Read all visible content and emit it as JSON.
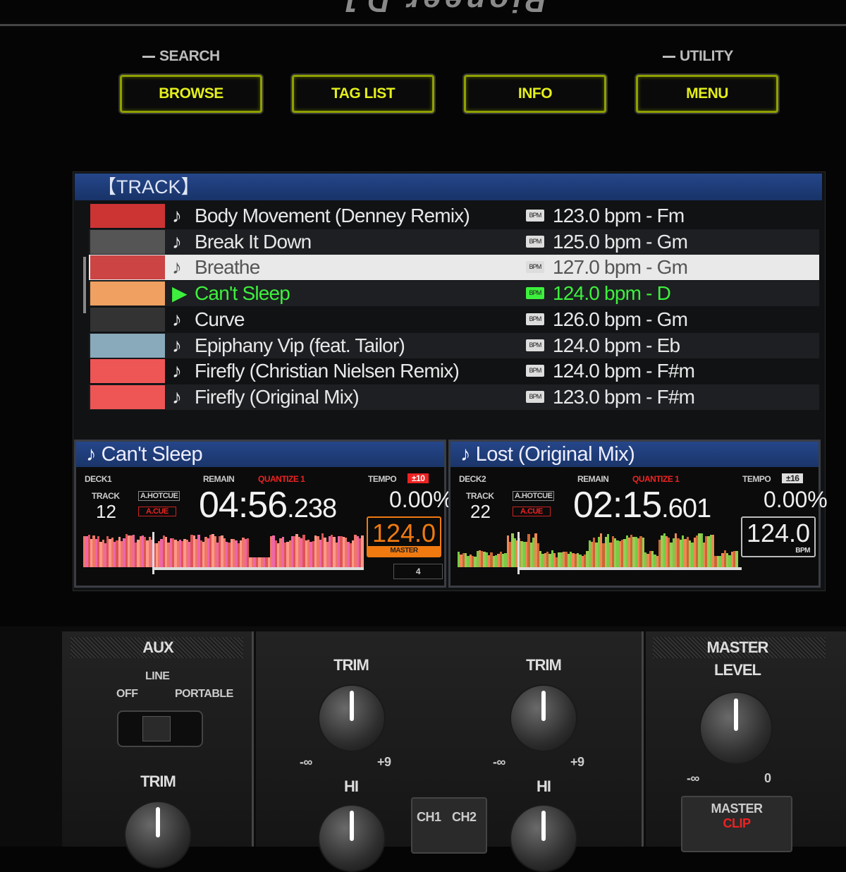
{
  "brand": "Pioneer DJ",
  "header": {
    "search_label": "SEARCH",
    "utility_label": "UTILITY",
    "buttons": [
      "BROWSE",
      "TAG LIST",
      "INFO",
      "MENU"
    ],
    "button_text_color": "#e4ef1a"
  },
  "browser": {
    "title": "【TRACK】",
    "tracks": [
      {
        "title": "Body Movement (Denney Remix)",
        "bpm": "123.0 bpm - Fm",
        "state": ""
      },
      {
        "title": "Break It Down",
        "bpm": "125.0 bpm - Gm",
        "state": ""
      },
      {
        "title": "Breathe",
        "bpm": "127.0 bpm - Gm",
        "state": "selected"
      },
      {
        "title": "Can't Sleep",
        "bpm": "124.0 bpm - D",
        "state": "playing"
      },
      {
        "title": "Curve",
        "bpm": "126.0 bpm - Gm",
        "state": ""
      },
      {
        "title": "Epiphany Vip (feat. Tailor)",
        "bpm": "124.0 bpm - Eb",
        "state": ""
      },
      {
        "title": "Firefly (Christian Nielsen Remix)",
        "bpm": "124.0 bpm - F#m",
        "state": ""
      },
      {
        "title": "Firefly (Original Mix)",
        "bpm": "123.0 bpm - F#m",
        "state": ""
      }
    ],
    "note_icon": "♪",
    "bpm_icon": "BPM",
    "playing_color": "#3df03d"
  },
  "decks": [
    {
      "title": "Can't Sleep",
      "deck": "DECK1",
      "track_label": "TRACK",
      "track": "12",
      "hotcue": "A.HOTCUE",
      "cue": "A.CUE",
      "remain": "REMAIN",
      "quantize": "QUANTIZE 1",
      "tempo_label": "TEMPO",
      "tempo_range": "±10",
      "time_main": "04:56",
      "time_ms": ".238",
      "pitch": "0.00%",
      "bpm": "124.0",
      "bpm_tag": "MASTER",
      "beat": "4",
      "bpm_color": "#f07a10"
    },
    {
      "title": "Lost (Original Mix)",
      "deck": "DECK2",
      "track_label": "TRACK",
      "track": "22",
      "hotcue": "A.HOTCUE",
      "cue": "A.CUE",
      "remain": "REMAIN",
      "quantize": "QUANTIZE 1",
      "tempo_label": "TEMPO",
      "tempo_range": "±16",
      "time_main": "02:15",
      "time_ms": ".601",
      "pitch": "0.00%",
      "bpm": "124.0",
      "bpm_tag": "BPM",
      "bpm_color": "#eeeeee"
    }
  ],
  "mixer": {
    "aux": {
      "title": "AUX",
      "line": "LINE",
      "off": "OFF",
      "portable": "PORTABLE",
      "trim": "TRIM"
    },
    "ch": [
      {
        "trim": "TRIM",
        "min": "-∞",
        "max": "+9",
        "hi": "HI"
      },
      {
        "trim": "TRIM",
        "min": "-∞",
        "max": "+9",
        "hi": "HI"
      }
    ],
    "cue_buttons": [
      "CH1",
      "CH2"
    ],
    "master": {
      "title": "MASTER",
      "level": "LEVEL",
      "min": "-∞",
      "max": "0",
      "clip_top": "MASTER",
      "clip": "CLIP"
    }
  }
}
